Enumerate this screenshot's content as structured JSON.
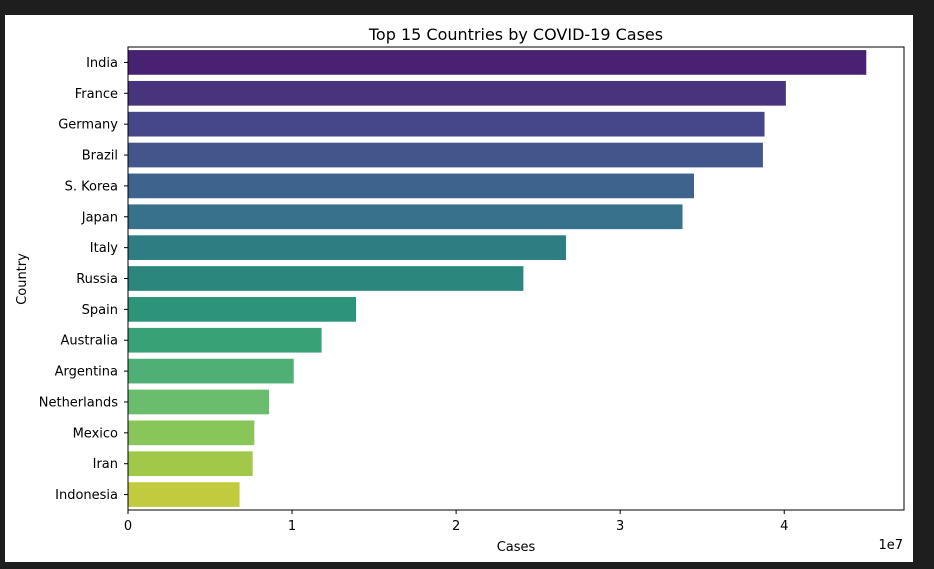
{
  "chart_data": {
    "type": "bar",
    "orientation": "horizontal",
    "title": "Top 15 Countries by COVID-19 Cases",
    "xlabel": "Cases",
    "ylabel": "Country",
    "x_offset_label": "1e7",
    "xlim": [
      0,
      4.73
    ],
    "x_ticks": [
      0,
      1,
      2,
      3,
      4
    ],
    "x_tick_labels": [
      "0",
      "1",
      "2",
      "3",
      "4"
    ],
    "grid": false,
    "categories": [
      "India",
      "France",
      "Germany",
      "Brazil",
      "S. Korea",
      "Japan",
      "Italy",
      "Russia",
      "Spain",
      "Australia",
      "Argentina",
      "Netherlands",
      "Mexico",
      "Iran",
      "Indonesia"
    ],
    "values": [
      45000000,
      40100000,
      38800000,
      38700000,
      34500000,
      33800000,
      26700000,
      24100000,
      13900000,
      11800000,
      10100000,
      8600000,
      7700000,
      7600000,
      6800000
    ],
    "colors": [
      "#482173",
      "#48347c",
      "#46468a",
      "#42568b",
      "#3e638c",
      "#38718a",
      "#2e7d83",
      "#2b877d",
      "#2b9479",
      "#38a277",
      "#50af74",
      "#6abd6c",
      "#88c65a",
      "#a2c84a",
      "#c2cb3e"
    ]
  }
}
